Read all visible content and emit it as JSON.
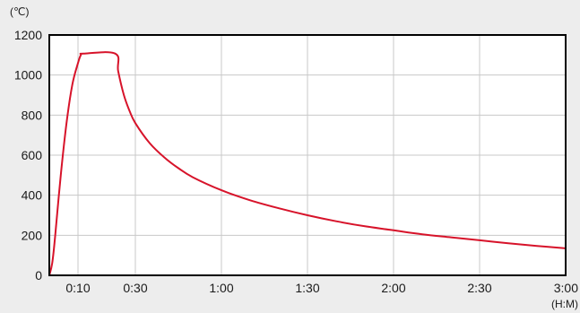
{
  "chart_data": {
    "type": "line",
    "y_unit_label": "(℃)",
    "x_unit_label": "(H:M)",
    "xlim": [
      0,
      180
    ],
    "ylim": [
      0,
      1200
    ],
    "grid": true,
    "x_ticks": [
      {
        "value": 10,
        "label": "0:10"
      },
      {
        "value": 30,
        "label": "0:30"
      },
      {
        "value": 60,
        "label": "1:00"
      },
      {
        "value": 90,
        "label": "1:30"
      },
      {
        "value": 120,
        "label": "2:00"
      },
      {
        "value": 150,
        "label": "2:30"
      },
      {
        "value": 180,
        "label": "3:00"
      }
    ],
    "y_ticks": [
      0,
      200,
      400,
      600,
      800,
      1000,
      1200
    ],
    "line_color": "#d7132a",
    "series": [
      {
        "x": [
          0,
          1,
          2,
          4,
          6,
          8,
          10,
          11,
          12,
          23,
          24,
          26,
          28,
          30,
          35,
          40,
          45,
          50,
          60,
          70,
          80,
          90,
          100,
          110,
          120,
          130,
          140,
          150,
          160,
          170,
          180
        ],
        "y": [
          0,
          60,
          190,
          500,
          760,
          950,
          1060,
          1100,
          1107,
          1107,
          1020,
          900,
          820,
          760,
          660,
          590,
          535,
          490,
          425,
          375,
          335,
          300,
          270,
          245,
          225,
          205,
          190,
          175,
          160,
          147,
          135
        ]
      }
    ]
  }
}
